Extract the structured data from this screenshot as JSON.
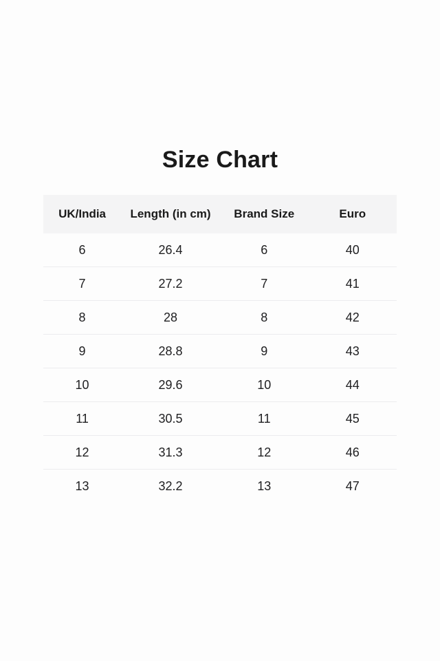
{
  "page": {
    "title": "Size Chart",
    "colors": {
      "page_bg": "#fdfdfd",
      "header_bg": "#f4f4f5",
      "divider": "#ececee",
      "text": "#1a1a1a"
    }
  },
  "chart_data": {
    "type": "table",
    "title": "Size Chart",
    "columns": [
      "UK/India",
      "Length (in cm)",
      "Brand Size",
      "Euro"
    ],
    "rows": [
      [
        "6",
        "26.4",
        "6",
        "40"
      ],
      [
        "7",
        "27.2",
        "7",
        "41"
      ],
      [
        "8",
        "28",
        "8",
        "42"
      ],
      [
        "9",
        "28.8",
        "9",
        "43"
      ],
      [
        "10",
        "29.6",
        "10",
        "44"
      ],
      [
        "11",
        "30.5",
        "11",
        "45"
      ],
      [
        "12",
        "31.3",
        "12",
        "46"
      ],
      [
        "13",
        "32.2",
        "13",
        "47"
      ]
    ]
  }
}
